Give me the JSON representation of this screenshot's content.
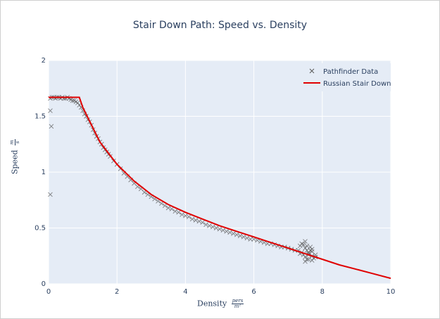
{
  "chart_data": {
    "type": "scatter",
    "title": "Stair Down Path: Speed vs. Density",
    "xlabel": "Density",
    "xlabel_unit_num": "pers",
    "xlabel_unit_den": "m²",
    "ylabel": "Speed",
    "ylabel_unit_num": "m",
    "ylabel_unit_den": "s",
    "xlim": [
      0,
      10
    ],
    "ylim": [
      0,
      2
    ],
    "x_ticks": [
      "0",
      "2",
      "4",
      "6",
      "8",
      "10"
    ],
    "y_ticks": [
      "0",
      "0.5",
      "1",
      "1.5",
      "2"
    ],
    "grid": true,
    "legend_position": "top-right",
    "colors": {
      "plot_bg": "#e5ecf6",
      "scatter": "#5a5a5a",
      "line": "#e00000",
      "text": "#2a3f5f"
    },
    "series": [
      {
        "name": "Pathfinder Data",
        "marker": "x",
        "x": [
          0.05,
          0.08,
          0.05,
          0.05,
          0.1,
          0.15,
          0.2,
          0.25,
          0.3,
          0.35,
          0.4,
          0.45,
          0.5,
          0.55,
          0.6,
          0.65,
          0.7,
          0.75,
          0.8,
          0.85,
          0.9,
          0.95,
          1.0,
          1.05,
          1.1,
          1.15,
          1.2,
          1.25,
          1.3,
          1.35,
          1.4,
          1.45,
          1.5,
          1.55,
          1.6,
          1.65,
          1.7,
          1.75,
          1.8,
          1.9,
          2.0,
          2.1,
          2.2,
          2.3,
          2.4,
          2.5,
          2.6,
          2.7,
          2.8,
          2.9,
          3.0,
          3.1,
          3.2,
          3.3,
          3.4,
          3.5,
          3.6,
          3.7,
          3.8,
          3.9,
          4.0,
          4.1,
          4.2,
          4.3,
          4.4,
          4.5,
          4.6,
          4.7,
          4.8,
          4.9,
          5.0,
          5.1,
          5.2,
          5.3,
          5.4,
          5.5,
          5.6,
          5.7,
          5.8,
          5.9,
          6.0,
          6.1,
          6.2,
          6.3,
          6.4,
          6.5,
          6.6,
          6.7,
          6.8,
          6.9,
          7.0,
          7.1,
          7.2,
          7.3,
          7.35,
          7.4,
          7.45,
          7.5,
          7.5,
          7.55,
          7.6,
          7.6,
          7.65,
          7.7,
          7.7,
          7.75,
          7.8,
          7.4,
          7.5,
          7.6,
          7.7,
          7.8,
          7.45,
          7.55,
          7.65,
          7.35,
          7.5,
          7.6,
          7.7,
          7.55
        ],
        "y": [
          0.8,
          1.41,
          1.55,
          1.66,
          1.67,
          1.67,
          1.66,
          1.67,
          1.67,
          1.66,
          1.67,
          1.66,
          1.66,
          1.67,
          1.66,
          1.65,
          1.64,
          1.64,
          1.63,
          1.62,
          1.6,
          1.58,
          1.55,
          1.52,
          1.5,
          1.47,
          1.45,
          1.42,
          1.38,
          1.35,
          1.32,
          1.3,
          1.27,
          1.25,
          1.22,
          1.2,
          1.18,
          1.16,
          1.14,
          1.1,
          1.07,
          1.03,
          0.99,
          0.96,
          0.93,
          0.9,
          0.87,
          0.85,
          0.82,
          0.8,
          0.78,
          0.76,
          0.74,
          0.72,
          0.7,
          0.68,
          0.67,
          0.65,
          0.64,
          0.62,
          0.61,
          0.6,
          0.58,
          0.57,
          0.56,
          0.55,
          0.53,
          0.52,
          0.51,
          0.5,
          0.49,
          0.48,
          0.47,
          0.46,
          0.45,
          0.44,
          0.43,
          0.42,
          0.41,
          0.4,
          0.4,
          0.39,
          0.38,
          0.37,
          0.36,
          0.36,
          0.35,
          0.34,
          0.33,
          0.33,
          0.32,
          0.31,
          0.3,
          0.3,
          0.34,
          0.28,
          0.26,
          0.32,
          0.24,
          0.3,
          0.27,
          0.22,
          0.33,
          0.25,
          0.29,
          0.23,
          0.26,
          0.36,
          0.2,
          0.28,
          0.31,
          0.24,
          0.35,
          0.22,
          0.3,
          0.27,
          0.38,
          0.26,
          0.21,
          0.34
        ]
      },
      {
        "name": "Russian Stair Down",
        "marker": "line",
        "x": [
          0,
          0.9,
          1.0,
          1.5,
          2.0,
          2.5,
          3.0,
          3.5,
          4.0,
          4.5,
          5.0,
          5.5,
          6.0,
          6.5,
          7.0,
          7.5,
          8.0,
          8.5,
          9.0,
          9.5,
          10.0
        ],
        "y": [
          1.67,
          1.67,
          1.58,
          1.27,
          1.07,
          0.92,
          0.8,
          0.71,
          0.64,
          0.58,
          0.52,
          0.47,
          0.42,
          0.37,
          0.32,
          0.27,
          0.22,
          0.17,
          0.13,
          0.09,
          0.05
        ]
      }
    ]
  }
}
